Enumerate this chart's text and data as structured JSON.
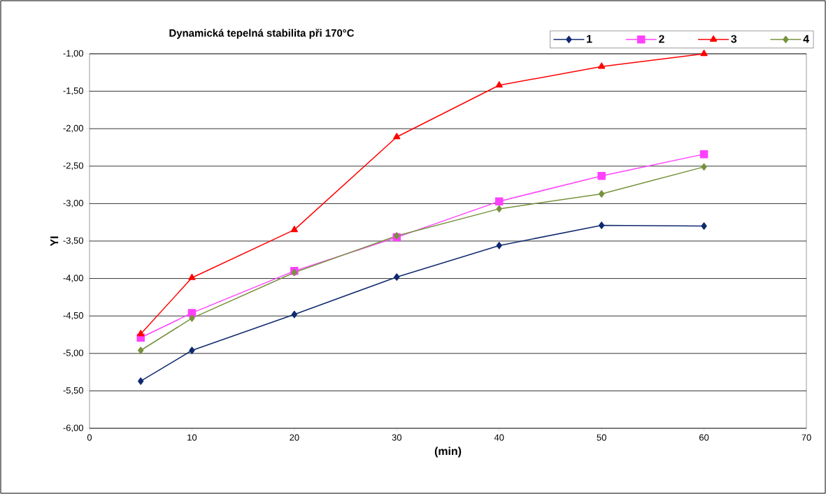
{
  "chart_data": {
    "type": "line",
    "title": "Dynamická tepelná stabilita při 170°C",
    "xlabel": "(min)",
    "ylabel": "YI",
    "x": [
      5,
      10,
      20,
      30,
      40,
      50,
      60
    ],
    "series": [
      {
        "name": "1",
        "color": "#0f2a6e",
        "marker": "diamond",
        "values": [
          -5.37,
          -4.96,
          -4.48,
          -3.98,
          -3.56,
          -3.29,
          -3.3
        ]
      },
      {
        "name": "2",
        "color": "#ff40ff",
        "marker": "square",
        "values": [
          -4.79,
          -4.46,
          -3.9,
          -3.45,
          -2.97,
          -2.63,
          -2.34
        ]
      },
      {
        "name": "3",
        "color": "#ff0000",
        "marker": "triangle",
        "values": [
          -4.74,
          -3.99,
          -3.35,
          -2.11,
          -1.42,
          -1.17,
          -1.0
        ]
      },
      {
        "name": "4",
        "color": "#76923c",
        "marker": "diamond",
        "values": [
          -4.96,
          -4.53,
          -3.92,
          -3.43,
          -3.07,
          -2.87,
          -2.51
        ]
      }
    ],
    "xlim": [
      0,
      70
    ],
    "xticks": [
      0,
      10,
      20,
      30,
      40,
      50,
      60,
      70
    ],
    "ylim": [
      -6,
      -1
    ],
    "yticks": [
      {
        "value": -6,
        "label": "-6,00"
      },
      {
        "value": -5.5,
        "label": "-5,50"
      },
      {
        "value": -5,
        "label": "-5,00"
      },
      {
        "value": -4.5,
        "label": "-4,50"
      },
      {
        "value": -4,
        "label": "-4,00"
      },
      {
        "value": -3.5,
        "label": "-3,50"
      },
      {
        "value": -3,
        "label": "-3,00"
      },
      {
        "value": -2.5,
        "label": "-2,50"
      },
      {
        "value": -2,
        "label": "-2,00"
      },
      {
        "value": -1.5,
        "label": "-1,50"
      },
      {
        "value": -1,
        "label": "-1,00"
      }
    ],
    "grid": "y",
    "legend": "top right",
    "line_style": "solid"
  }
}
